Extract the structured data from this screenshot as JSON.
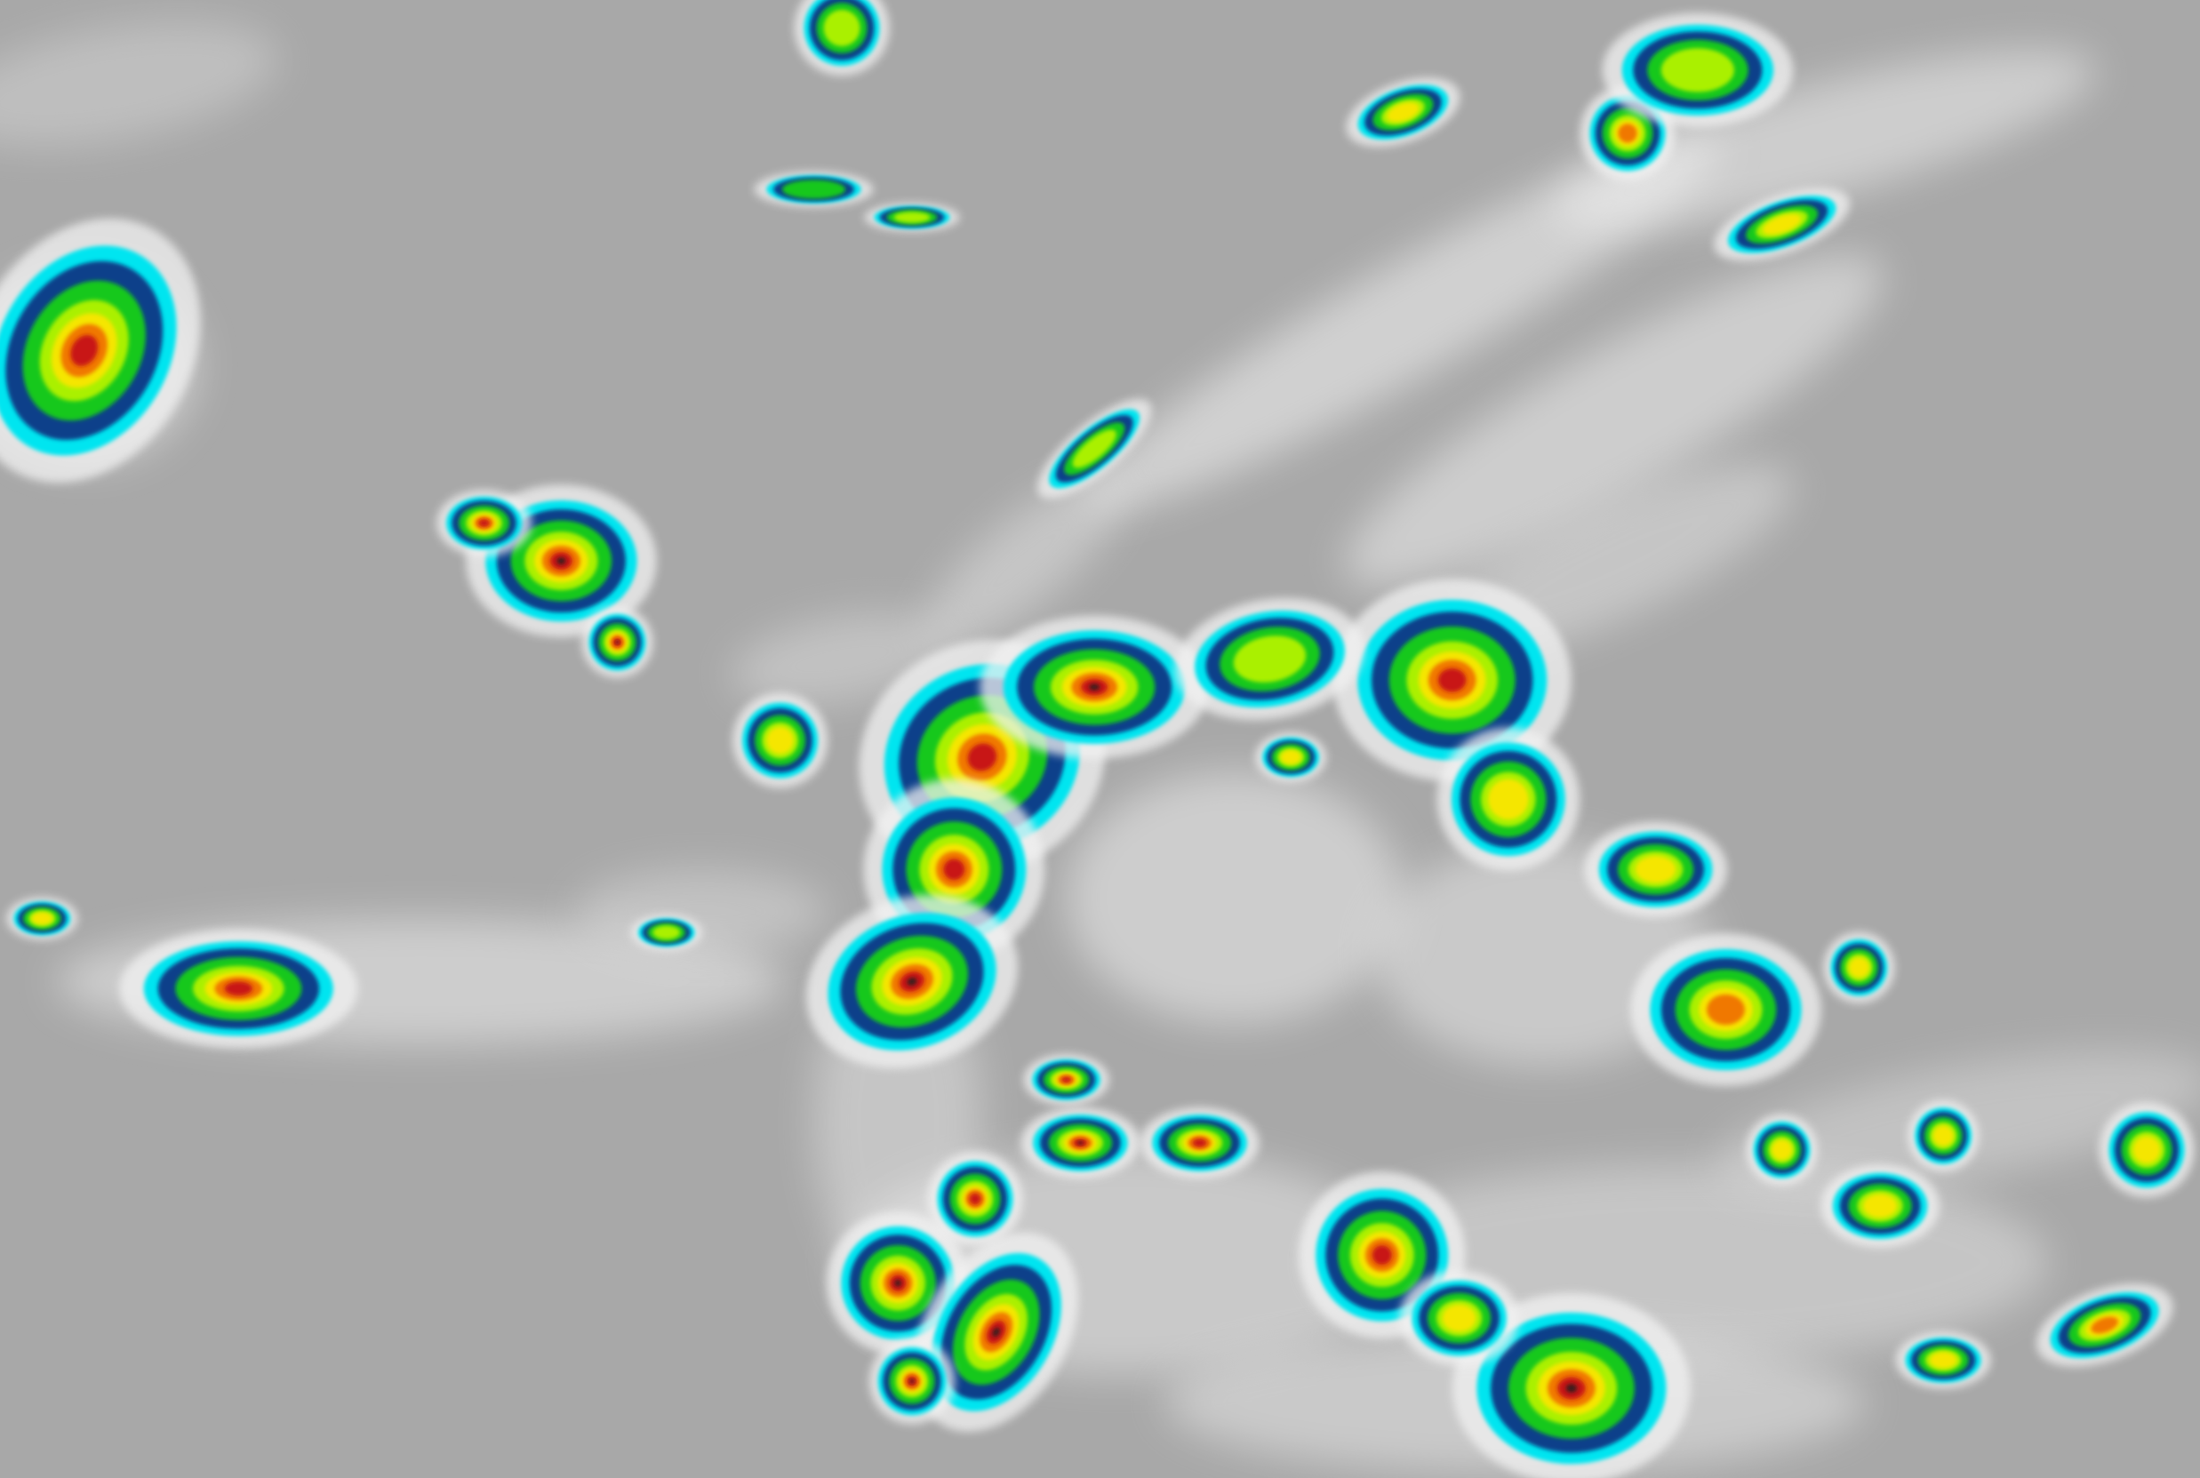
{
  "image": {
    "background_color": "#a8a8a8",
    "cirrus_color": "#f2f2f2",
    "enhancement_scale": [
      "#00e5f0",
      "#0a3f8a",
      "#19c81e",
      "#aaf000",
      "#f5e600",
      "#f07800",
      "#c81414",
      "#3a1a1a"
    ]
  }
}
